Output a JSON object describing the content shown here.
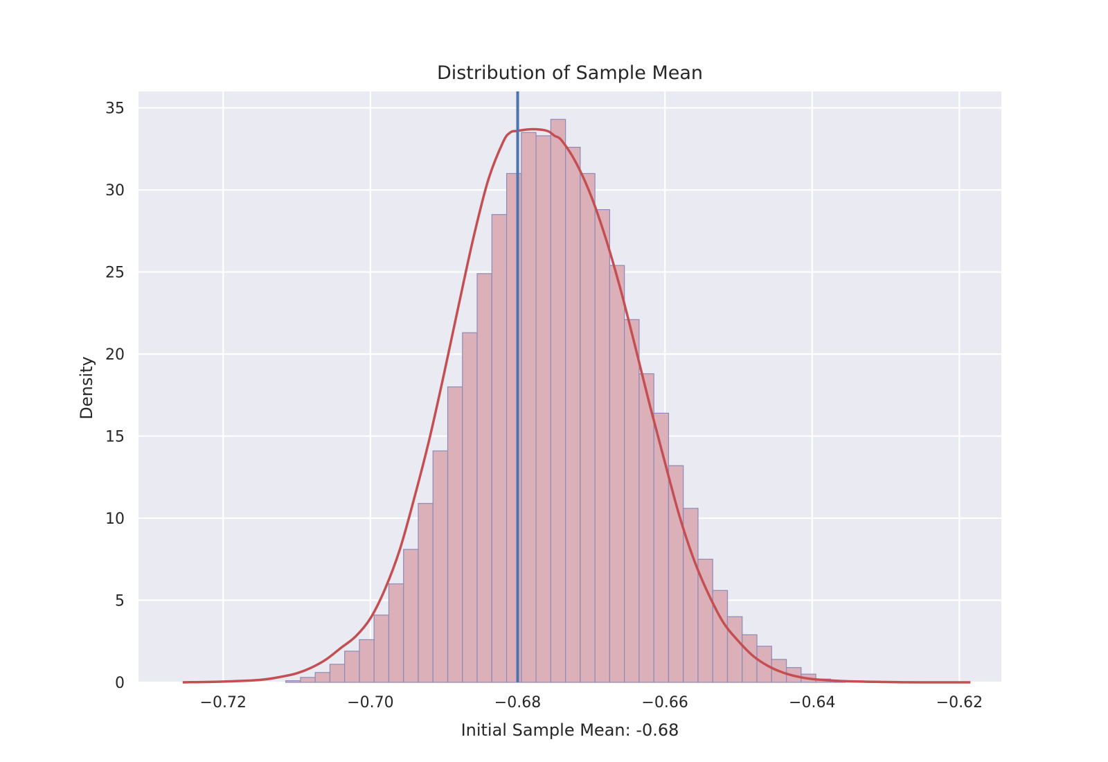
{
  "chart_data": {
    "type": "histogram",
    "title": "Distribution of Sample Mean",
    "xlabel": "Initial Sample Mean: -0.68",
    "ylabel": "Density",
    "xlim": [
      -0.7315,
      -0.6143
    ],
    "ylim": [
      0,
      36
    ],
    "grid": true,
    "x_ticks": [
      {
        "value": -0.72,
        "label": "−0.72"
      },
      {
        "value": -0.7,
        "label": "−0.70"
      },
      {
        "value": -0.68,
        "label": "−0.68"
      },
      {
        "value": -0.66,
        "label": "−0.66"
      },
      {
        "value": -0.64,
        "label": "−0.64"
      },
      {
        "value": -0.62,
        "label": "−0.62"
      }
    ],
    "y_ticks": [
      {
        "value": 0,
        "label": "0"
      },
      {
        "value": 5,
        "label": "5"
      },
      {
        "value": 10,
        "label": "10"
      },
      {
        "value": 15,
        "label": "15"
      },
      {
        "value": 20,
        "label": "20"
      },
      {
        "value": 25,
        "label": "25"
      },
      {
        "value": 30,
        "label": "30"
      },
      {
        "value": 35,
        "label": "35"
      }
    ],
    "bins": {
      "start": -0.7115,
      "width": 0.002,
      "values": [
        0.1,
        0.3,
        0.6,
        1.1,
        1.9,
        2.6,
        4.1,
        6.0,
        8.1,
        10.9,
        14.1,
        18.0,
        21.3,
        24.9,
        28.5,
        31.0,
        33.5,
        33.3,
        34.3,
        32.6,
        31.0,
        28.8,
        25.4,
        22.1,
        18.8,
        16.4,
        13.2,
        10.6,
        7.5,
        5.6,
        4.0,
        2.9,
        2.2,
        1.4,
        0.9,
        0.5,
        0.2,
        0.1
      ]
    },
    "kde": {
      "x": [
        -0.7255,
        -0.72,
        -0.715,
        -0.712,
        -0.71,
        -0.708,
        -0.706,
        -0.704,
        -0.702,
        -0.7,
        -0.698,
        -0.696,
        -0.694,
        -0.692,
        -0.69,
        -0.688,
        -0.686,
        -0.684,
        -0.682,
        -0.681,
        -0.68,
        -0.678,
        -0.676,
        -0.675,
        -0.674,
        -0.672,
        -0.67,
        -0.668,
        -0.666,
        -0.664,
        -0.662,
        -0.66,
        -0.658,
        -0.656,
        -0.654,
        -0.652,
        -0.65,
        -0.648,
        -0.646,
        -0.644,
        -0.642,
        -0.64,
        -0.636,
        -0.63,
        -0.625,
        -0.6185
      ],
      "y": [
        0.0,
        0.05,
        0.15,
        0.35,
        0.55,
        0.9,
        1.4,
        2.1,
        2.8,
        3.9,
        5.7,
        8.1,
        11.3,
        14.8,
        18.8,
        23.0,
        27.1,
        30.6,
        32.9,
        33.5,
        33.6,
        33.7,
        33.6,
        33.3,
        33.0,
        31.6,
        29.6,
        27.0,
        23.9,
        20.4,
        16.8,
        13.4,
        10.1,
        7.4,
        5.3,
        3.6,
        2.5,
        1.6,
        1.0,
        0.6,
        0.35,
        0.2,
        0.08,
        0.02,
        0.0,
        0.0
      ]
    },
    "vline": {
      "x": -0.68
    },
    "colors": {
      "background": "#eaeaf2",
      "grid": "#ffffff",
      "bar_fill": "#dcb0b8",
      "bar_edge": "#8c8ab6",
      "kde": "#c44e52",
      "vline": "#4c72b0",
      "text": "#262626"
    }
  }
}
